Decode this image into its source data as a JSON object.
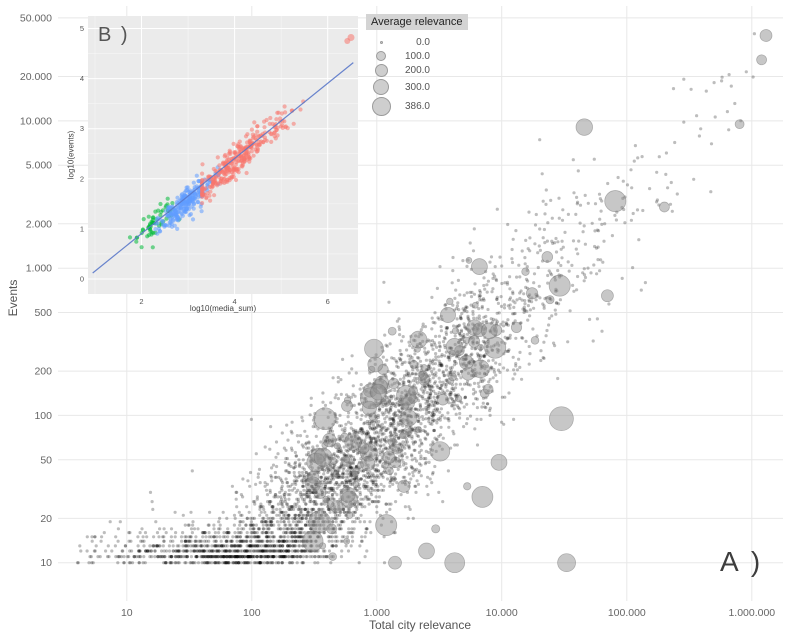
{
  "chart_data": {
    "type": "scatter",
    "title": "",
    "main": {
      "panel_label": "A )",
      "xlabel": "Total city relevance",
      "ylabel": "Events",
      "x_scale": "log10",
      "y_scale": "log10",
      "xlim_log": [
        0.45,
        6.25
      ],
      "ylim_log": [
        0.74,
        4.78
      ],
      "grid_color": "#e8e8e8",
      "x_ticks": [
        {
          "v": 10,
          "label": "10"
        },
        {
          "v": 100,
          "label": "100"
        },
        {
          "v": 1000,
          "label": "1.000"
        },
        {
          "v": 10000,
          "label": "10.000"
        },
        {
          "v": 100000,
          "label": "100.000"
        },
        {
          "v": 1000000,
          "label": "1.000.000"
        }
      ],
      "y_ticks": [
        {
          "v": 10,
          "label": "10"
        },
        {
          "v": 20,
          "label": "20"
        },
        {
          "v": 50,
          "label": "50"
        },
        {
          "v": 100,
          "label": "100"
        },
        {
          "v": 200,
          "label": "200"
        },
        {
          "v": 500,
          "label": "500"
        },
        {
          "v": 1000,
          "label": "1.000"
        },
        {
          "v": 2000,
          "label": "2.000"
        },
        {
          "v": 5000,
          "label": "5.000"
        },
        {
          "v": 10000,
          "label": "10.000"
        },
        {
          "v": 20000,
          "label": "20.000"
        },
        {
          "v": 50000,
          "label": "50.000"
        }
      ],
      "point_color": "#000000",
      "point_opacity": 0.26,
      "bubble_color": "#8f8f8f",
      "bubble_opacity": 0.5,
      "generator": {
        "seed": 1337,
        "n": 4200,
        "x_mean": 2.78,
        "x_sd": 0.82,
        "x_min": 0.6,
        "x_max": 6.15,
        "tail_prob": 0.012,
        "tail_range": [
          4.6,
          6.15
        ],
        "slope": 0.8,
        "intercept": -0.58,
        "y_sd": 0.27,
        "y_max_log": 4.72,
        "small_r": 1.6,
        "big_prob": 0.04,
        "big_x_threshold": 2.45,
        "big_r_min": 3,
        "big_r_max": 11
      },
      "highlight_bubbles": [
        {
          "x": 1300000,
          "y": 38000,
          "r": 6
        },
        {
          "x": 1200000,
          "y": 26000,
          "r": 5
        },
        {
          "x": 800000,
          "y": 9500,
          "r": 4.5
        },
        {
          "x": 30000,
          "y": 95,
          "r": 12
        },
        {
          "x": 33000,
          "y": 10,
          "r": 9
        },
        {
          "x": 7000,
          "y": 28,
          "r": 10.5
        },
        {
          "x": 9500,
          "y": 48,
          "r": 8
        },
        {
          "x": 4200,
          "y": 10,
          "r": 10
        },
        {
          "x": 2500,
          "y": 12,
          "r": 8
        },
        {
          "x": 1400,
          "y": 10,
          "r": 6.5
        },
        {
          "x": 5200,
          "y": 230,
          "r": 7
        },
        {
          "x": 70000,
          "y": 650,
          "r": 6
        },
        {
          "x": 200000,
          "y": 2600,
          "r": 5
        }
      ]
    },
    "inset": {
      "panel_label": "B )",
      "xlabel": "log10(media_sum)",
      "ylabel": "log10(events)",
      "bg": "#ebebeb",
      "grid_major": "#ffffff",
      "grid_minor": "#f5f5f5",
      "xlim": [
        0.85,
        6.65
      ],
      "ylim": [
        -0.3,
        5.25
      ],
      "x_ticks": [
        2,
        4,
        6
      ],
      "y_ticks": [
        0,
        1,
        2,
        3,
        4,
        5
      ],
      "point_radius": 2.1,
      "point_opacity": 0.55,
      "fit_line": {
        "x1": 0.95,
        "y1": 0.12,
        "x2": 6.55,
        "y2": 4.32,
        "color": "#5a78c9",
        "width": 1.2
      },
      "clusters": [
        {
          "name": "green-cluster",
          "color": "#00BA38",
          "n": 60,
          "x_mean": 2.28,
          "x_sd": 0.24,
          "x_min": 1.7,
          "x_max": 2.85,
          "slope": 0.75,
          "intercept": -0.6,
          "y_sd": 0.14
        },
        {
          "name": "blue-cluster",
          "color": "#619CFF",
          "n": 240,
          "x_mean": 2.95,
          "x_sd": 0.3,
          "x_min": 2.3,
          "x_max": 3.65,
          "slope": 0.78,
          "intercept": -0.78,
          "y_sd": 0.13
        },
        {
          "name": "red-cluster",
          "color": "#F8766D",
          "n": 330,
          "x_mean": 4.15,
          "x_sd": 0.55,
          "x_min": 3.3,
          "x_max": 6.6,
          "slope": 0.8,
          "intercept": -0.86,
          "y_sd": 0.16
        }
      ],
      "extra_points": [
        {
          "x": 6.42,
          "y": 4.75,
          "color": "#F8766D",
          "r": 3
        },
        {
          "x": 6.5,
          "y": 4.82,
          "color": "#F8766D",
          "r": 3.5
        }
      ]
    },
    "legend": {
      "title": "Average relevance",
      "items": [
        {
          "label": "0.0",
          "r": 1.5
        },
        {
          "label": "100.0",
          "r": 5
        },
        {
          "label": "200.0",
          "r": 6.5
        },
        {
          "label": "300.0",
          "r": 8
        },
        {
          "label": "386.0",
          "r": 9.5
        }
      ]
    }
  }
}
